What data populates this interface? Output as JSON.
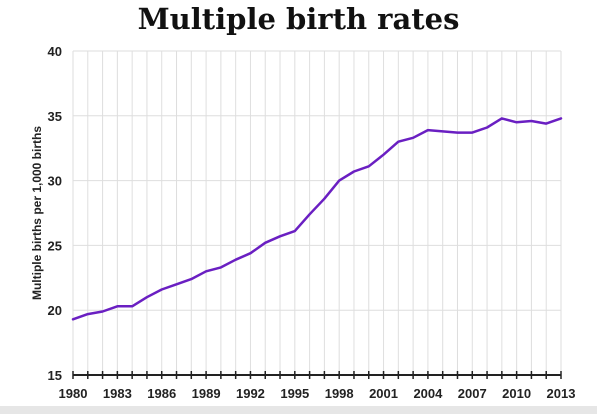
{
  "chart_data": {
    "type": "line",
    "title": "Multiple birth rates",
    "xlabel": "",
    "ylabel": "Multiple births per 1,000 births",
    "xlim": [
      1980,
      2013
    ],
    "ylim": [
      15,
      40
    ],
    "yticks": [
      15,
      20,
      25,
      30,
      35,
      40
    ],
    "xticks": [
      1980,
      1983,
      1986,
      1989,
      1992,
      1995,
      1998,
      2001,
      2004,
      2007,
      2010,
      2013
    ],
    "grid": true,
    "line_color": "#6a1fc2",
    "series": [
      {
        "x": [
          1980,
          1981,
          1982,
          1983,
          1984,
          1985,
          1986,
          1987,
          1988,
          1989,
          1990,
          1991,
          1992,
          1993,
          1994,
          1995,
          1996,
          1997,
          1998,
          1999,
          2000,
          2001,
          2002,
          2003,
          2004,
          2005,
          2006,
          2007,
          2008,
          2009,
          2010,
          2011,
          2012,
          2013
        ],
        "values": [
          19.3,
          19.7,
          19.9,
          20.3,
          20.3,
          21.0,
          21.6,
          22.0,
          22.4,
          23.0,
          23.3,
          23.9,
          24.4,
          25.2,
          25.7,
          26.1,
          27.4,
          28.6,
          30.0,
          30.7,
          31.1,
          32.0,
          33.0,
          33.3,
          33.9,
          33.8,
          33.7,
          33.7,
          34.1,
          34.8,
          34.5,
          34.6,
          34.4,
          34.8
        ]
      }
    ]
  }
}
